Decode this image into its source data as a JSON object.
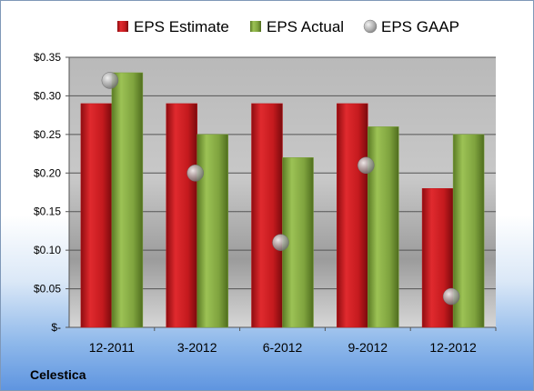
{
  "company": "Celestica",
  "colors": {
    "estimate": "#c0161b",
    "actual": "#7ba03a",
    "gaap": "#9a9a9a"
  },
  "chart_data": {
    "type": "bar",
    "categories": [
      "12-2011",
      "3-2012",
      "6-2012",
      "9-2012",
      "12-2012"
    ],
    "series": [
      {
        "name": "EPS Estimate",
        "kind": "bar",
        "values": [
          0.29,
          0.29,
          0.29,
          0.29,
          0.18
        ]
      },
      {
        "name": "EPS Actual",
        "kind": "bar",
        "values": [
          0.33,
          0.25,
          0.22,
          0.26,
          0.25
        ]
      },
      {
        "name": "EPS GAAP",
        "kind": "scatter",
        "values": [
          0.32,
          0.2,
          0.11,
          0.21,
          0.04
        ]
      }
    ],
    "yticks": [
      "$-",
      "$0.05",
      "$0.10",
      "$0.15",
      "$0.20",
      "$0.25",
      "$0.30",
      "$0.35"
    ],
    "ylim": [
      0,
      0.35
    ],
    "grid": true,
    "legend_position": "top"
  }
}
